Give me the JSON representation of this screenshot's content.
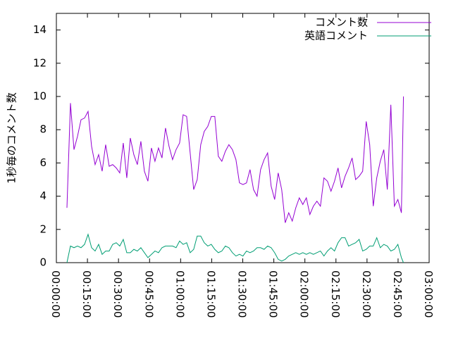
{
  "chart_data": {
    "type": "line",
    "y_label": "1秒毎のコメント数",
    "x": [
      5.1,
      6.8,
      8.5,
      10.2,
      11.9,
      13.6,
      15.3,
      17.0,
      18.7,
      20.4,
      22.1,
      23.8,
      25.5,
      27.2,
      28.9,
      30.6,
      32.3,
      34.0,
      35.7,
      37.4,
      39.1,
      40.8,
      42.5,
      44.2,
      45.9,
      47.6,
      49.3,
      51.0,
      52.7,
      54.4,
      56.1,
      57.8,
      59.5,
      61.2,
      62.9,
      64.6,
      66.3,
      68.0,
      69.7,
      71.4,
      73.1,
      74.8,
      76.5,
      78.2,
      79.9,
      81.6,
      83.3,
      85.0,
      86.7,
      88.4,
      90.1,
      91.8,
      93.5,
      95.2,
      96.9,
      98.6,
      100.3,
      102.0,
      103.7,
      105.4,
      107.1,
      108.8,
      110.5,
      112.2,
      113.9,
      115.6,
      117.3,
      119.0,
      120.7,
      122.4,
      124.1,
      125.8,
      127.5,
      129.2,
      130.9,
      132.6,
      134.3,
      136.0,
      137.7,
      139.4,
      141.1,
      142.8,
      144.5,
      146.2,
      147.9,
      149.6,
      151.3,
      153.0,
      154.7,
      156.4,
      158.1,
      159.8,
      161.5,
      163.2,
      164.9,
      166.6,
      167.6
    ],
    "series": [
      {
        "name": "コメント数",
        "color": "#9400d3",
        "values": [
          3.3,
          9.6,
          6.8,
          7.6,
          8.6,
          8.7,
          9.1,
          7.0,
          5.9,
          6.5,
          5.5,
          7.1,
          5.8,
          5.9,
          5.7,
          5.4,
          7.2,
          5.1,
          7.5,
          6.5,
          5.9,
          7.3,
          5.5,
          4.9,
          6.9,
          6.1,
          6.9,
          6.3,
          8.1,
          7.0,
          6.2,
          6.8,
          7.2,
          8.9,
          8.8,
          6.6,
          4.4,
          5.0,
          7.1,
          7.9,
          8.2,
          8.8,
          8.8,
          6.4,
          6.1,
          6.7,
          7.1,
          6.8,
          6.2,
          4.8,
          4.7,
          4.8,
          5.6,
          4.4,
          4.0,
          5.6,
          6.2,
          6.6,
          4.6,
          3.8,
          5.4,
          4.4,
          2.4,
          3.0,
          2.5,
          3.3,
          3.9,
          3.5,
          3.9,
          2.9,
          3.4,
          3.7,
          3.4,
          5.1,
          4.9,
          4.3,
          4.9,
          5.7,
          4.5,
          5.2,
          5.7,
          6.3,
          5.0,
          5.2,
          5.5,
          8.5,
          7.1,
          3.4,
          5.1,
          6.1,
          6.8,
          4.4,
          9.5,
          3.4,
          3.8,
          3.0,
          10.0
        ]
      },
      {
        "name": "英語コメント",
        "color": "#009e73",
        "values": [
          0,
          1.0,
          0.9,
          1.0,
          0.9,
          1.1,
          1.7,
          0.9,
          0.7,
          1.1,
          0.5,
          0.7,
          0.7,
          1.1,
          1.2,
          1.0,
          1.4,
          0.6,
          0.6,
          0.8,
          0.7,
          0.9,
          0.6,
          0.3,
          0.5,
          0.7,
          0.6,
          0.9,
          1.0,
          1.0,
          1.0,
          0.9,
          1.3,
          1.1,
          1.2,
          0.6,
          0.8,
          1.6,
          1.6,
          1.2,
          1.0,
          1.1,
          0.8,
          0.6,
          0.7,
          1.0,
          0.9,
          0.6,
          0.4,
          0.5,
          0.4,
          0.7,
          0.6,
          0.7,
          0.9,
          0.9,
          0.8,
          1.0,
          0.9,
          0.6,
          0.2,
          0.1,
          0.2,
          0.4,
          0.5,
          0.6,
          0.5,
          0.6,
          0.5,
          0.6,
          0.5,
          0.6,
          0.7,
          0.4,
          0.7,
          0.9,
          0.7,
          1.2,
          1.5,
          1.5,
          1.0,
          1.1,
          1.2,
          1.4,
          0.7,
          0.8,
          1.0,
          1.0,
          1.5,
          0.9,
          1.1,
          1.0,
          0.7,
          0.8,
          1.1,
          0.3,
          0
        ]
      }
    ],
    "xlim": [
      0,
      180
    ],
    "xticks": [
      {
        "value": 0,
        "label": "00:00:00"
      },
      {
        "value": 15,
        "label": "00:15:00"
      },
      {
        "value": 30,
        "label": "00:30:00"
      },
      {
        "value": 45,
        "label": "00:45:00"
      },
      {
        "value": 60,
        "label": "01:00:00"
      },
      {
        "value": 75,
        "label": "01:15:00"
      },
      {
        "value": 90,
        "label": "01:30:00"
      },
      {
        "value": 105,
        "label": "01:45:00"
      },
      {
        "value": 120,
        "label": "02:00:00"
      },
      {
        "value": 135,
        "label": "02:15:00"
      },
      {
        "value": 150,
        "label": "02:30:00"
      },
      {
        "value": 165,
        "label": "02:45:00"
      },
      {
        "value": 180,
        "label": "03:00:00"
      }
    ],
    "ylim": [
      0,
      15
    ],
    "yticks": [
      0,
      2,
      4,
      6,
      8,
      10,
      12,
      14
    ]
  }
}
